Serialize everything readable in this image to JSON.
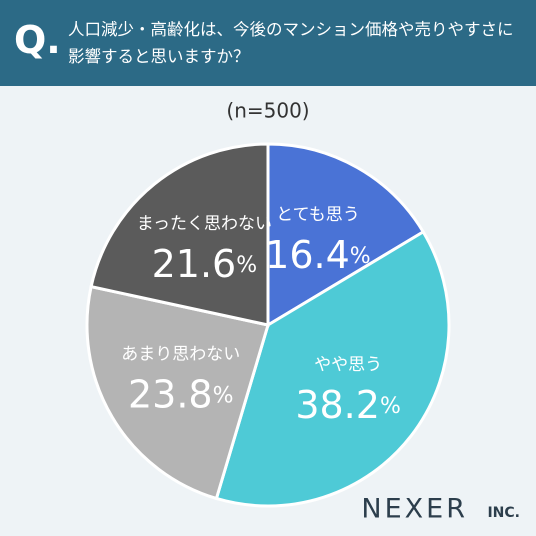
{
  "chart_data": {
    "type": "pie",
    "title_prefix": "Q.",
    "title": "人口減少・高齢化は、今後のマンション価格や売りやすさに影響すると思いますか？",
    "subtitle": "(n=500)",
    "categories": [
      "とても思う",
      "やや思う",
      "あまり思わない",
      "まったく思わない"
    ],
    "values": [
      16.4,
      38.2,
      23.8,
      21.6
    ],
    "value_labels": [
      "16.4%",
      "38.2%",
      "23.8%",
      "21.6%"
    ],
    "colors": [
      "#4a73d6",
      "#4ecad6",
      "#b4b4b4",
      "#5b5b5b"
    ],
    "brand": "NEXER",
    "brand_suffix": "INC."
  }
}
